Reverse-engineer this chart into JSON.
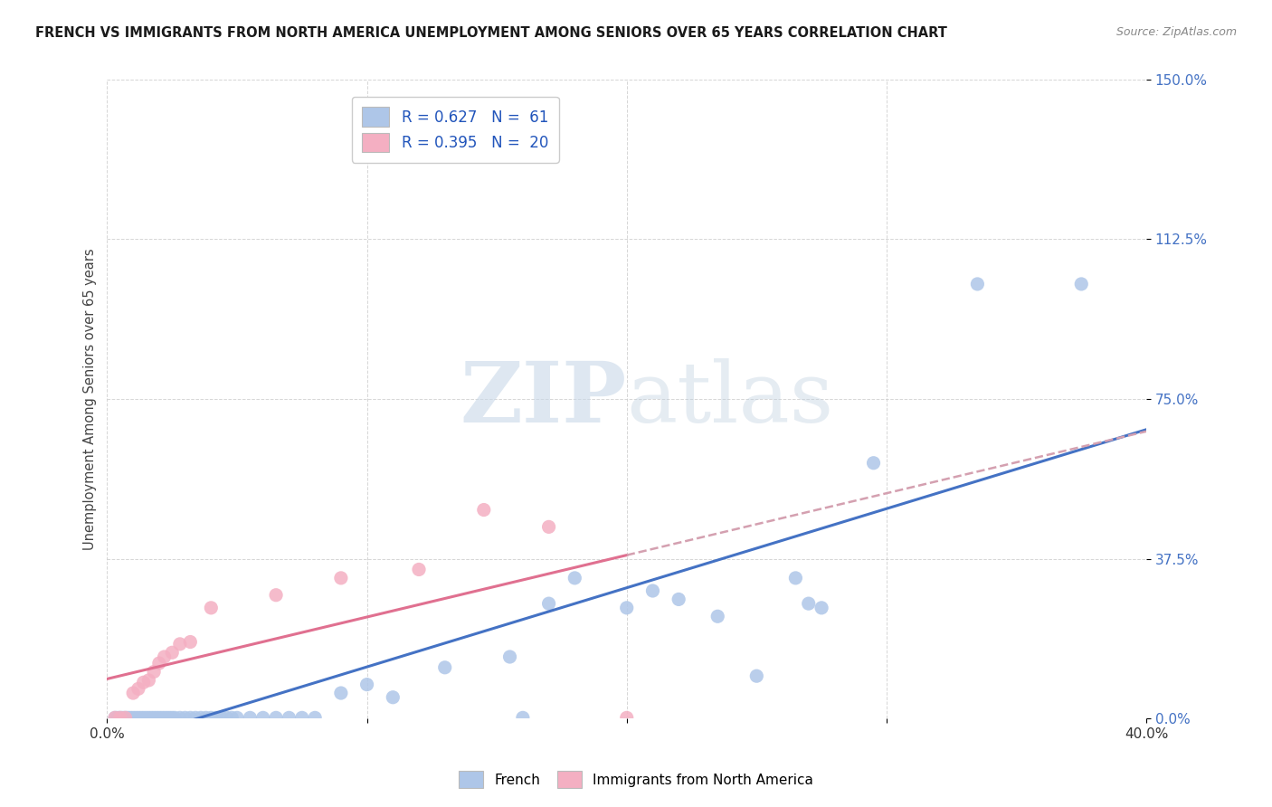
{
  "title": "FRENCH VS IMMIGRANTS FROM NORTH AMERICA UNEMPLOYMENT AMONG SENIORS OVER 65 YEARS CORRELATION CHART",
  "source": "Source: ZipAtlas.com",
  "ylabel": "Unemployment Among Seniors over 65 years",
  "xlim": [
    0.0,
    0.4
  ],
  "ylim": [
    0.0,
    1.5
  ],
  "xticks": [
    0.0,
    0.1,
    0.2,
    0.3,
    0.4
  ],
  "xtick_labels": [
    "0.0%",
    "",
    "",
    "",
    "40.0%"
  ],
  "yticks": [
    0.0,
    0.375,
    0.75,
    1.125,
    1.5
  ],
  "ytick_labels": [
    "0.0%",
    "37.5%",
    "75.0%",
    "112.5%",
    "150.0%"
  ],
  "legend_r1": "R = 0.627",
  "legend_n1": "N =  61",
  "legend_r2": "R = 0.395",
  "legend_n2": "N =  20",
  "blue_scatter_color": "#aec6e8",
  "pink_scatter_color": "#f4afc2",
  "blue_line_color": "#4472c4",
  "pink_line_color": "#e07090",
  "dashed_line_color": "#d4a0b0",
  "french_x": [
    0.003,
    0.004,
    0.005,
    0.006,
    0.007,
    0.008,
    0.009,
    0.01,
    0.011,
    0.012,
    0.013,
    0.014,
    0.015,
    0.016,
    0.017,
    0.018,
    0.019,
    0.02,
    0.021,
    0.022,
    0.023,
    0.024,
    0.025,
    0.026,
    0.028,
    0.03,
    0.032,
    0.034,
    0.036,
    0.038,
    0.04,
    0.042,
    0.044,
    0.046,
    0.048,
    0.05,
    0.055,
    0.06,
    0.065,
    0.07,
    0.075,
    0.08,
    0.09,
    0.1,
    0.11,
    0.13,
    0.155,
    0.16,
    0.17,
    0.18,
    0.2,
    0.21,
    0.22,
    0.235,
    0.25,
    0.265,
    0.27,
    0.275,
    0.295,
    0.335,
    0.375
  ],
  "french_y": [
    0.002,
    0.002,
    0.002,
    0.002,
    0.002,
    0.002,
    0.002,
    0.002,
    0.002,
    0.002,
    0.002,
    0.002,
    0.002,
    0.002,
    0.002,
    0.002,
    0.002,
    0.002,
    0.002,
    0.002,
    0.002,
    0.002,
    0.002,
    0.002,
    0.002,
    0.002,
    0.002,
    0.002,
    0.002,
    0.002,
    0.002,
    0.002,
    0.002,
    0.002,
    0.002,
    0.002,
    0.002,
    0.002,
    0.002,
    0.002,
    0.002,
    0.002,
    0.06,
    0.08,
    0.05,
    0.12,
    0.145,
    0.002,
    0.27,
    0.33,
    0.26,
    0.3,
    0.28,
    0.24,
    0.1,
    0.33,
    0.27,
    0.26,
    0.6,
    1.02,
    1.02
  ],
  "immna_x": [
    0.003,
    0.005,
    0.007,
    0.01,
    0.012,
    0.014,
    0.016,
    0.018,
    0.02,
    0.022,
    0.025,
    0.028,
    0.032,
    0.04,
    0.065,
    0.09,
    0.12,
    0.145,
    0.17,
    0.2
  ],
  "immna_y": [
    0.002,
    0.002,
    0.002,
    0.06,
    0.07,
    0.085,
    0.09,
    0.11,
    0.13,
    0.145,
    0.155,
    0.175,
    0.18,
    0.26,
    0.29,
    0.33,
    0.35,
    0.49,
    0.45,
    0.002
  ],
  "blue_slope": 1.28,
  "blue_intercept": 0.005,
  "pink_slope": 2.2,
  "pink_intercept": 0.025
}
